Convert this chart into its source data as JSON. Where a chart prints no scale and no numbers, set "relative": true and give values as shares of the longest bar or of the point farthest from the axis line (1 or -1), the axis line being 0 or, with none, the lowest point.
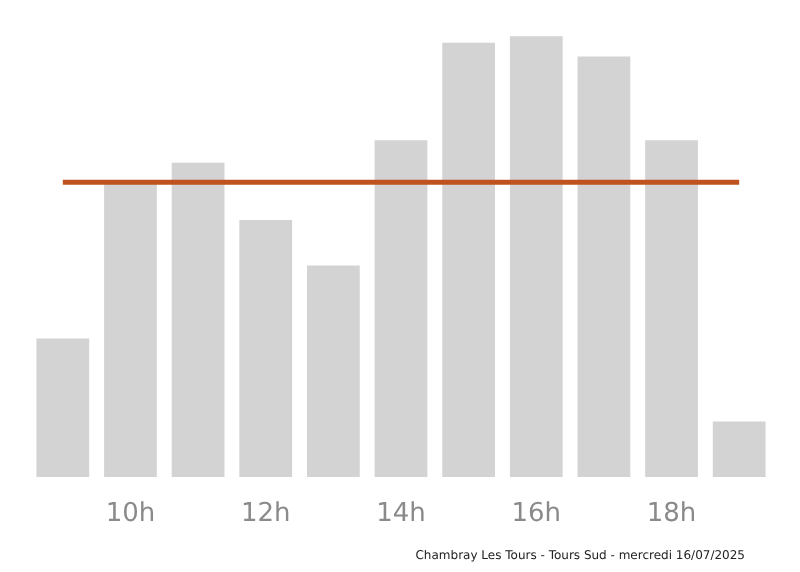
{
  "chart_data": {
    "type": "bar",
    "relative": true,
    "categories": [
      null,
      "10h",
      null,
      "12h",
      null,
      "14h",
      null,
      "16h",
      null,
      "18h",
      null
    ],
    "values": [
      0.314,
      0.667,
      0.713,
      0.583,
      0.48,
      0.764,
      0.985,
      1,
      0.954,
      0.764,
      0.126
    ],
    "color": "#d3d3d3",
    "ref_lines": [
      {
        "axis": "y",
        "value": 0.669,
        "color": "#c0521f"
      }
    ],
    "annotations": [
      "Chambray Les Tours - Tours Sud - mercredi 16/07/2025"
    ],
    "grid": false
  }
}
